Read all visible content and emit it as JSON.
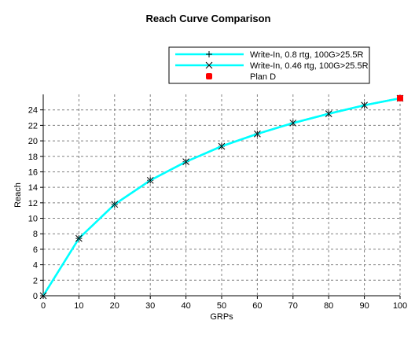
{
  "chart_data": {
    "type": "line",
    "title": "Reach Curve Comparison",
    "xlabel": "GRPs",
    "ylabel": "Reach",
    "xlim": [
      0,
      100
    ],
    "ylim": [
      0,
      26
    ],
    "x_ticks": [
      "0",
      "10",
      "20",
      "30",
      "40",
      "50",
      "60",
      "70",
      "80",
      "90",
      "100"
    ],
    "y_ticks": [
      "0",
      "2",
      "4",
      "6",
      "8",
      "10",
      "12",
      "14",
      "16",
      "18",
      "20",
      "22",
      "24"
    ],
    "grid": true,
    "legend_position": "top-right",
    "series": [
      {
        "name": "Write-In, 0.8 rtg, 100G>25.5R",
        "marker": "plus",
        "color": "#00ffff",
        "x": [
          0,
          10,
          20,
          30,
          40,
          50,
          60,
          70,
          80,
          90,
          100
        ],
        "y": [
          0,
          7.4,
          11.8,
          14.9,
          17.3,
          19.3,
          20.9,
          22.3,
          23.5,
          24.6,
          25.5
        ]
      },
      {
        "name": "Write-In, 0.46 rtg, 100G>25.5R",
        "marker": "x",
        "color": "#00ffff",
        "x": [
          0,
          10,
          20,
          30,
          40,
          50,
          60,
          70,
          80,
          90,
          100
        ],
        "y": [
          0,
          7.4,
          11.8,
          14.9,
          17.3,
          19.3,
          20.9,
          22.3,
          23.5,
          24.6,
          25.5
        ]
      },
      {
        "name": "Plan D",
        "marker": "dot",
        "color": "#ff0000",
        "x": [
          100
        ],
        "y": [
          25.5
        ]
      }
    ]
  }
}
